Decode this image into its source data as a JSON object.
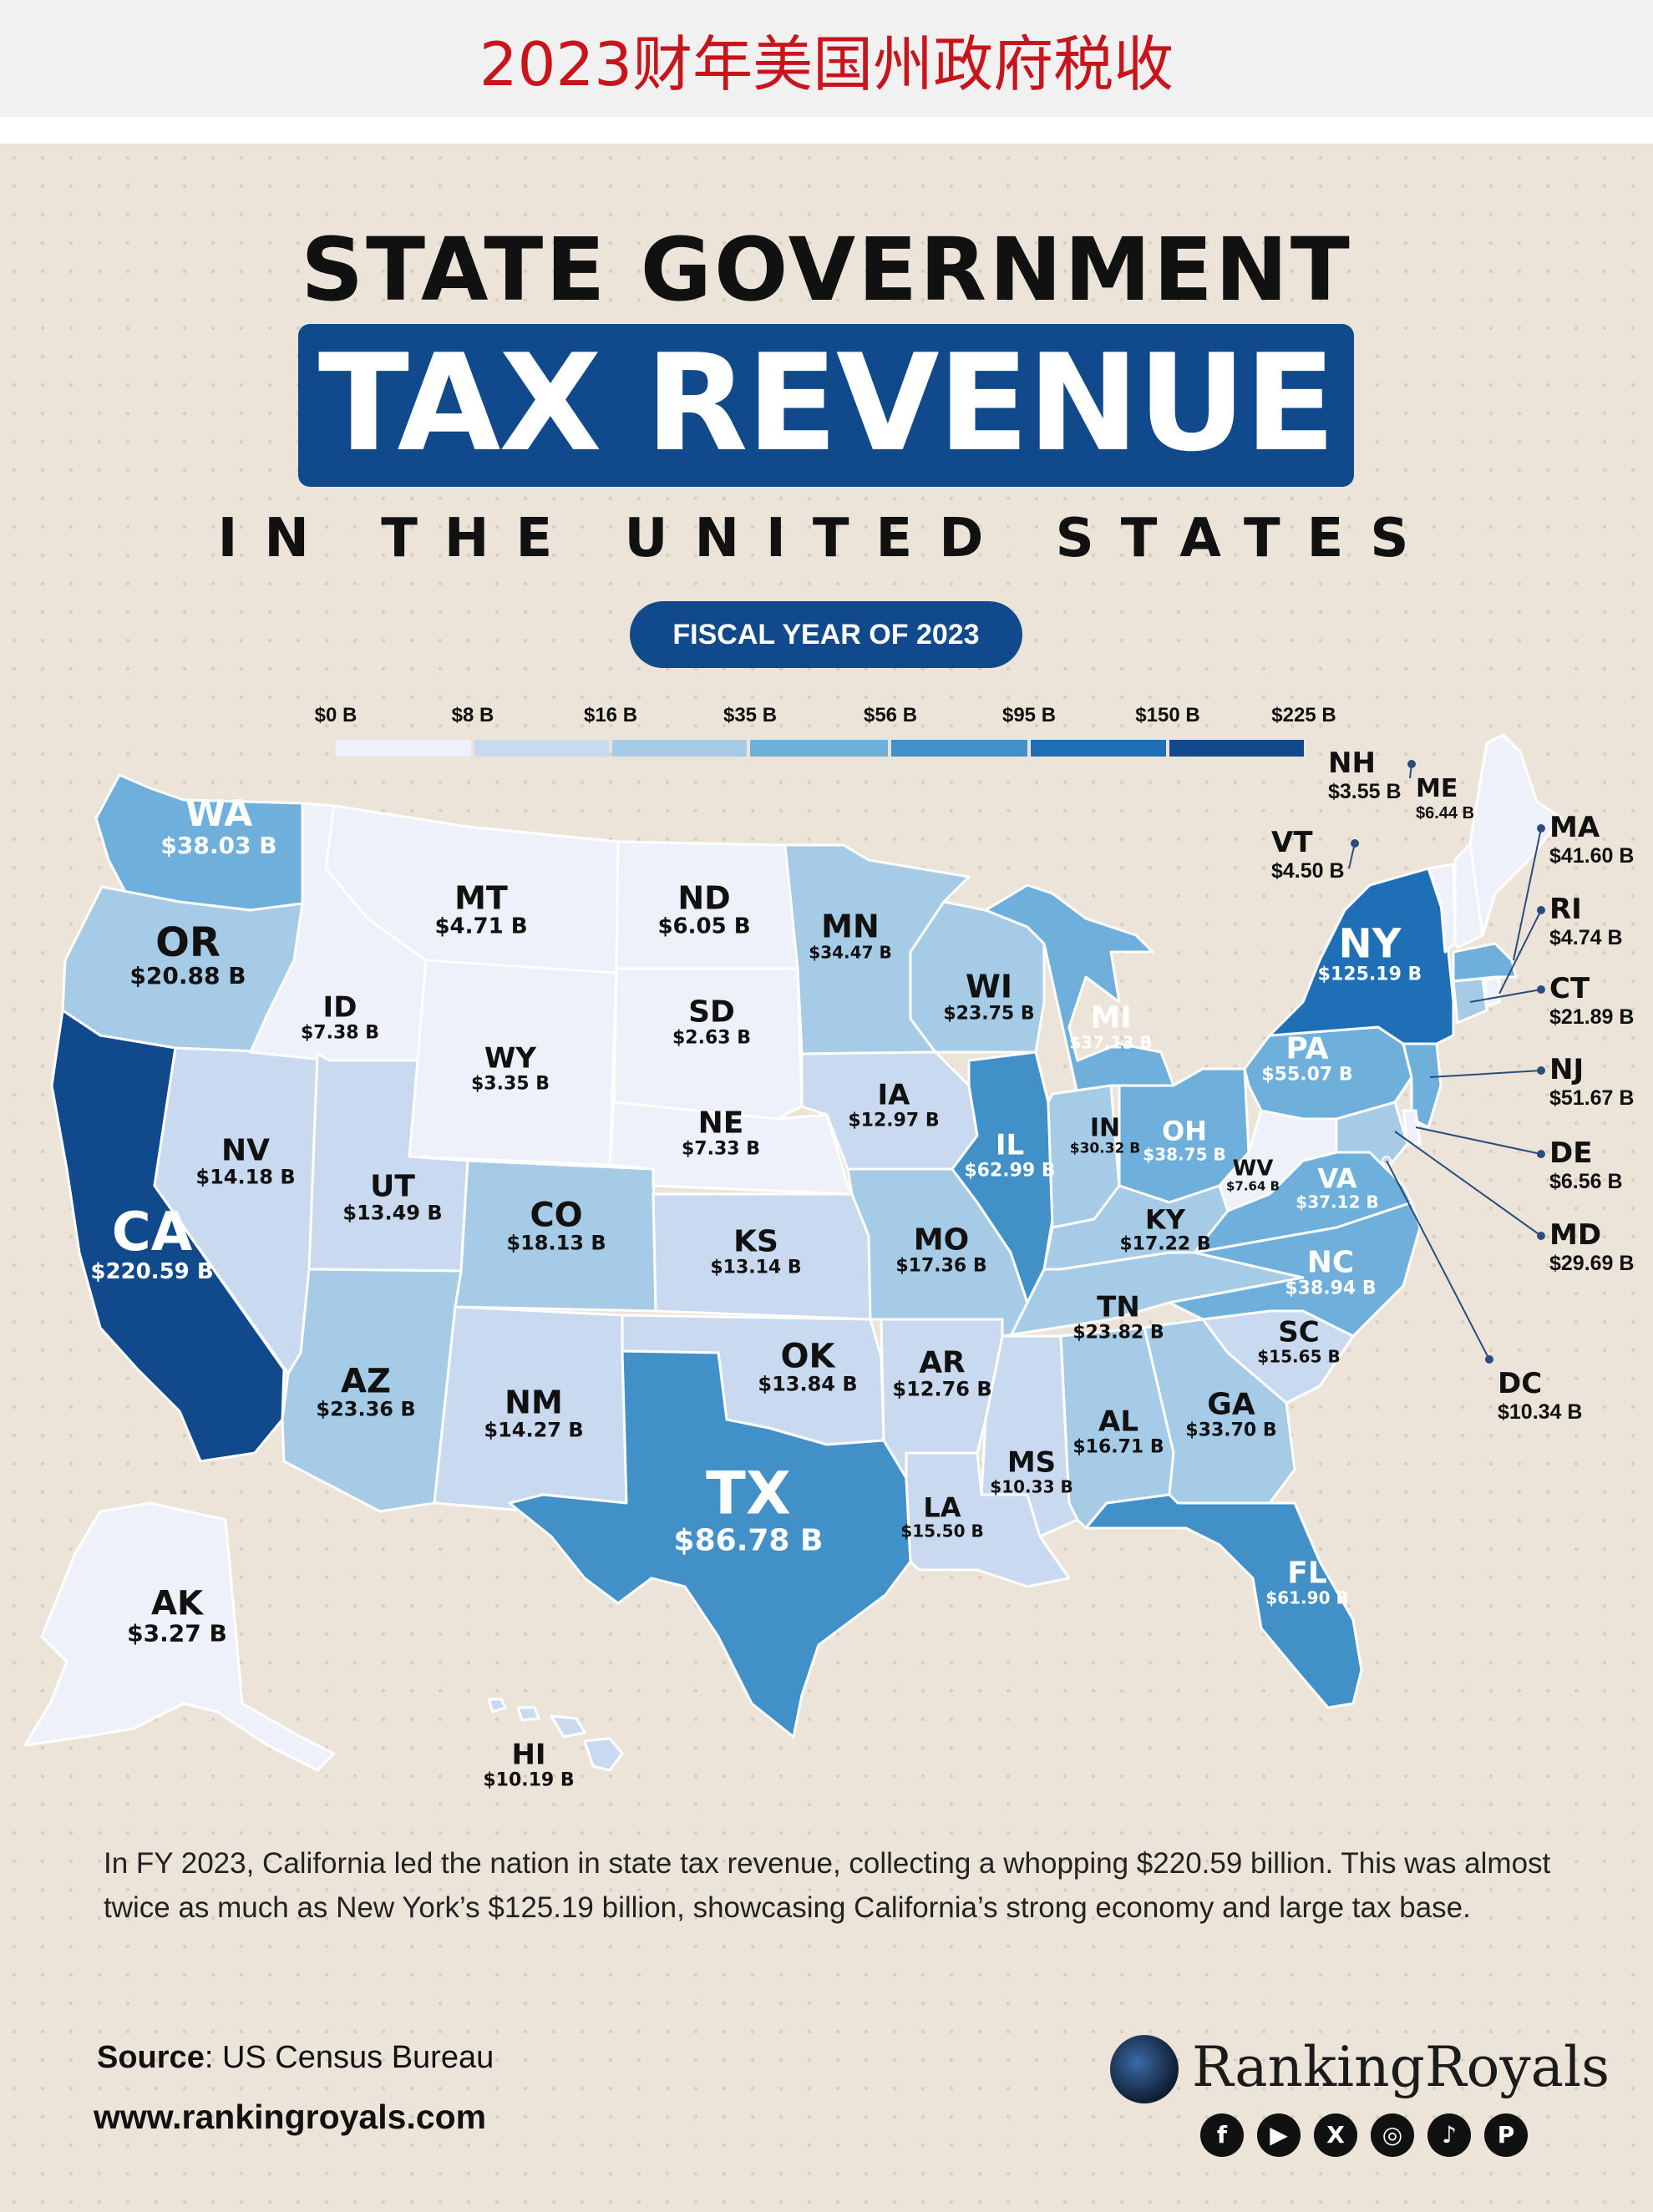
{
  "banner_title": "2023财年美国州政府税收",
  "poster": {
    "title_line1": "STATE GOVERNMENT",
    "title_line2": "TAX REVENUE",
    "title_line3": "IN THE UNITED STATES",
    "fiscal_pill": "FISCAL YEAR OF 2023"
  },
  "legend": {
    "labels": [
      "$0 B",
      "$8 B",
      "$16 B",
      "$35 B",
      "$56 B",
      "$95 B",
      "$150 B",
      "$225 B"
    ],
    "colors": [
      "#eef1f9",
      "#c9daf0",
      "#a5cbe6",
      "#6eb0db",
      "#4290c8",
      "#1e6fb5",
      "#114a8c"
    ]
  },
  "map_data": {
    "type": "choropleth",
    "unit": "billion USD",
    "states": [
      {
        "code": "WA",
        "value": "$38.03 B"
      },
      {
        "code": "OR",
        "value": "$20.88 B"
      },
      {
        "code": "CA",
        "value": "$220.59 B"
      },
      {
        "code": "ID",
        "value": "$7.38 B"
      },
      {
        "code": "NV",
        "value": "$14.18 B"
      },
      {
        "code": "MT",
        "value": "$4.71 B"
      },
      {
        "code": "WY",
        "value": "$3.35 B"
      },
      {
        "code": "UT",
        "value": "$13.49 B"
      },
      {
        "code": "AZ",
        "value": "$23.36 B"
      },
      {
        "code": "CO",
        "value": "$18.13 B"
      },
      {
        "code": "NM",
        "value": "$14.27 B"
      },
      {
        "code": "ND",
        "value": "$6.05 B"
      },
      {
        "code": "SD",
        "value": "$2.63 B"
      },
      {
        "code": "NE",
        "value": "$7.33 B"
      },
      {
        "code": "KS",
        "value": "$13.14 B"
      },
      {
        "code": "OK",
        "value": "$13.84 B"
      },
      {
        "code": "TX",
        "value": "$86.78 B"
      },
      {
        "code": "MN",
        "value": "$34.47 B"
      },
      {
        "code": "IA",
        "value": "$12.97 B"
      },
      {
        "code": "MO",
        "value": "$17.36 B"
      },
      {
        "code": "AR",
        "value": "$12.76 B"
      },
      {
        "code": "LA",
        "value": "$15.50 B"
      },
      {
        "code": "WI",
        "value": "$23.75 B"
      },
      {
        "code": "IL",
        "value": "$62.99 B"
      },
      {
        "code": "MS",
        "value": "$10.33 B"
      },
      {
        "code": "MI",
        "value": "$37.13 B"
      },
      {
        "code": "IN",
        "value": "$30.32 B"
      },
      {
        "code": "KY",
        "value": "$17.22 B"
      },
      {
        "code": "TN",
        "value": "$23.82 B"
      },
      {
        "code": "AL",
        "value": "$16.71 B"
      },
      {
        "code": "OH",
        "value": "$38.75 B"
      },
      {
        "code": "GA",
        "value": "$33.70 B"
      },
      {
        "code": "FL",
        "value": "$61.90 B"
      },
      {
        "code": "SC",
        "value": "$15.65 B"
      },
      {
        "code": "NC",
        "value": "$38.94 B"
      },
      {
        "code": "VA",
        "value": "$37.12 B"
      },
      {
        "code": "WV",
        "value": "$7.64 B"
      },
      {
        "code": "PA",
        "value": "$55.07 B"
      },
      {
        "code": "NY",
        "value": "$125.19 B"
      },
      {
        "code": "VT",
        "value": "$4.50 B"
      },
      {
        "code": "NH",
        "value": "$3.55 B"
      },
      {
        "code": "ME",
        "value": "$6.44 B"
      },
      {
        "code": "MA",
        "value": "$41.60 B"
      },
      {
        "code": "RI",
        "value": "$4.74 B"
      },
      {
        "code": "CT",
        "value": "$21.89 B"
      },
      {
        "code": "NJ",
        "value": "$51.67 B"
      },
      {
        "code": "DE",
        "value": "$6.56 B"
      },
      {
        "code": "MD",
        "value": "$29.69 B"
      },
      {
        "code": "DC",
        "value": "$10.34 B"
      },
      {
        "code": "AK",
        "value": "$3.27 B"
      },
      {
        "code": "HI",
        "value": "$10.19 B"
      }
    ]
  },
  "description": "In FY 2023, California led the nation in state tax revenue, collecting a whopping $220.59 billion. This was almost twice as much as New York’s $125.19 billion, showcasing California’s strong economy and large tax base.",
  "source_label": "Source",
  "source_value": ": US Census Bureau",
  "website": "www.rankingroyals.com",
  "brand": "RankingRoyals",
  "social_icons": [
    "facebook-icon",
    "youtube-icon",
    "x-icon",
    "instagram-icon",
    "tiktok-icon",
    "pinterest-icon"
  ]
}
